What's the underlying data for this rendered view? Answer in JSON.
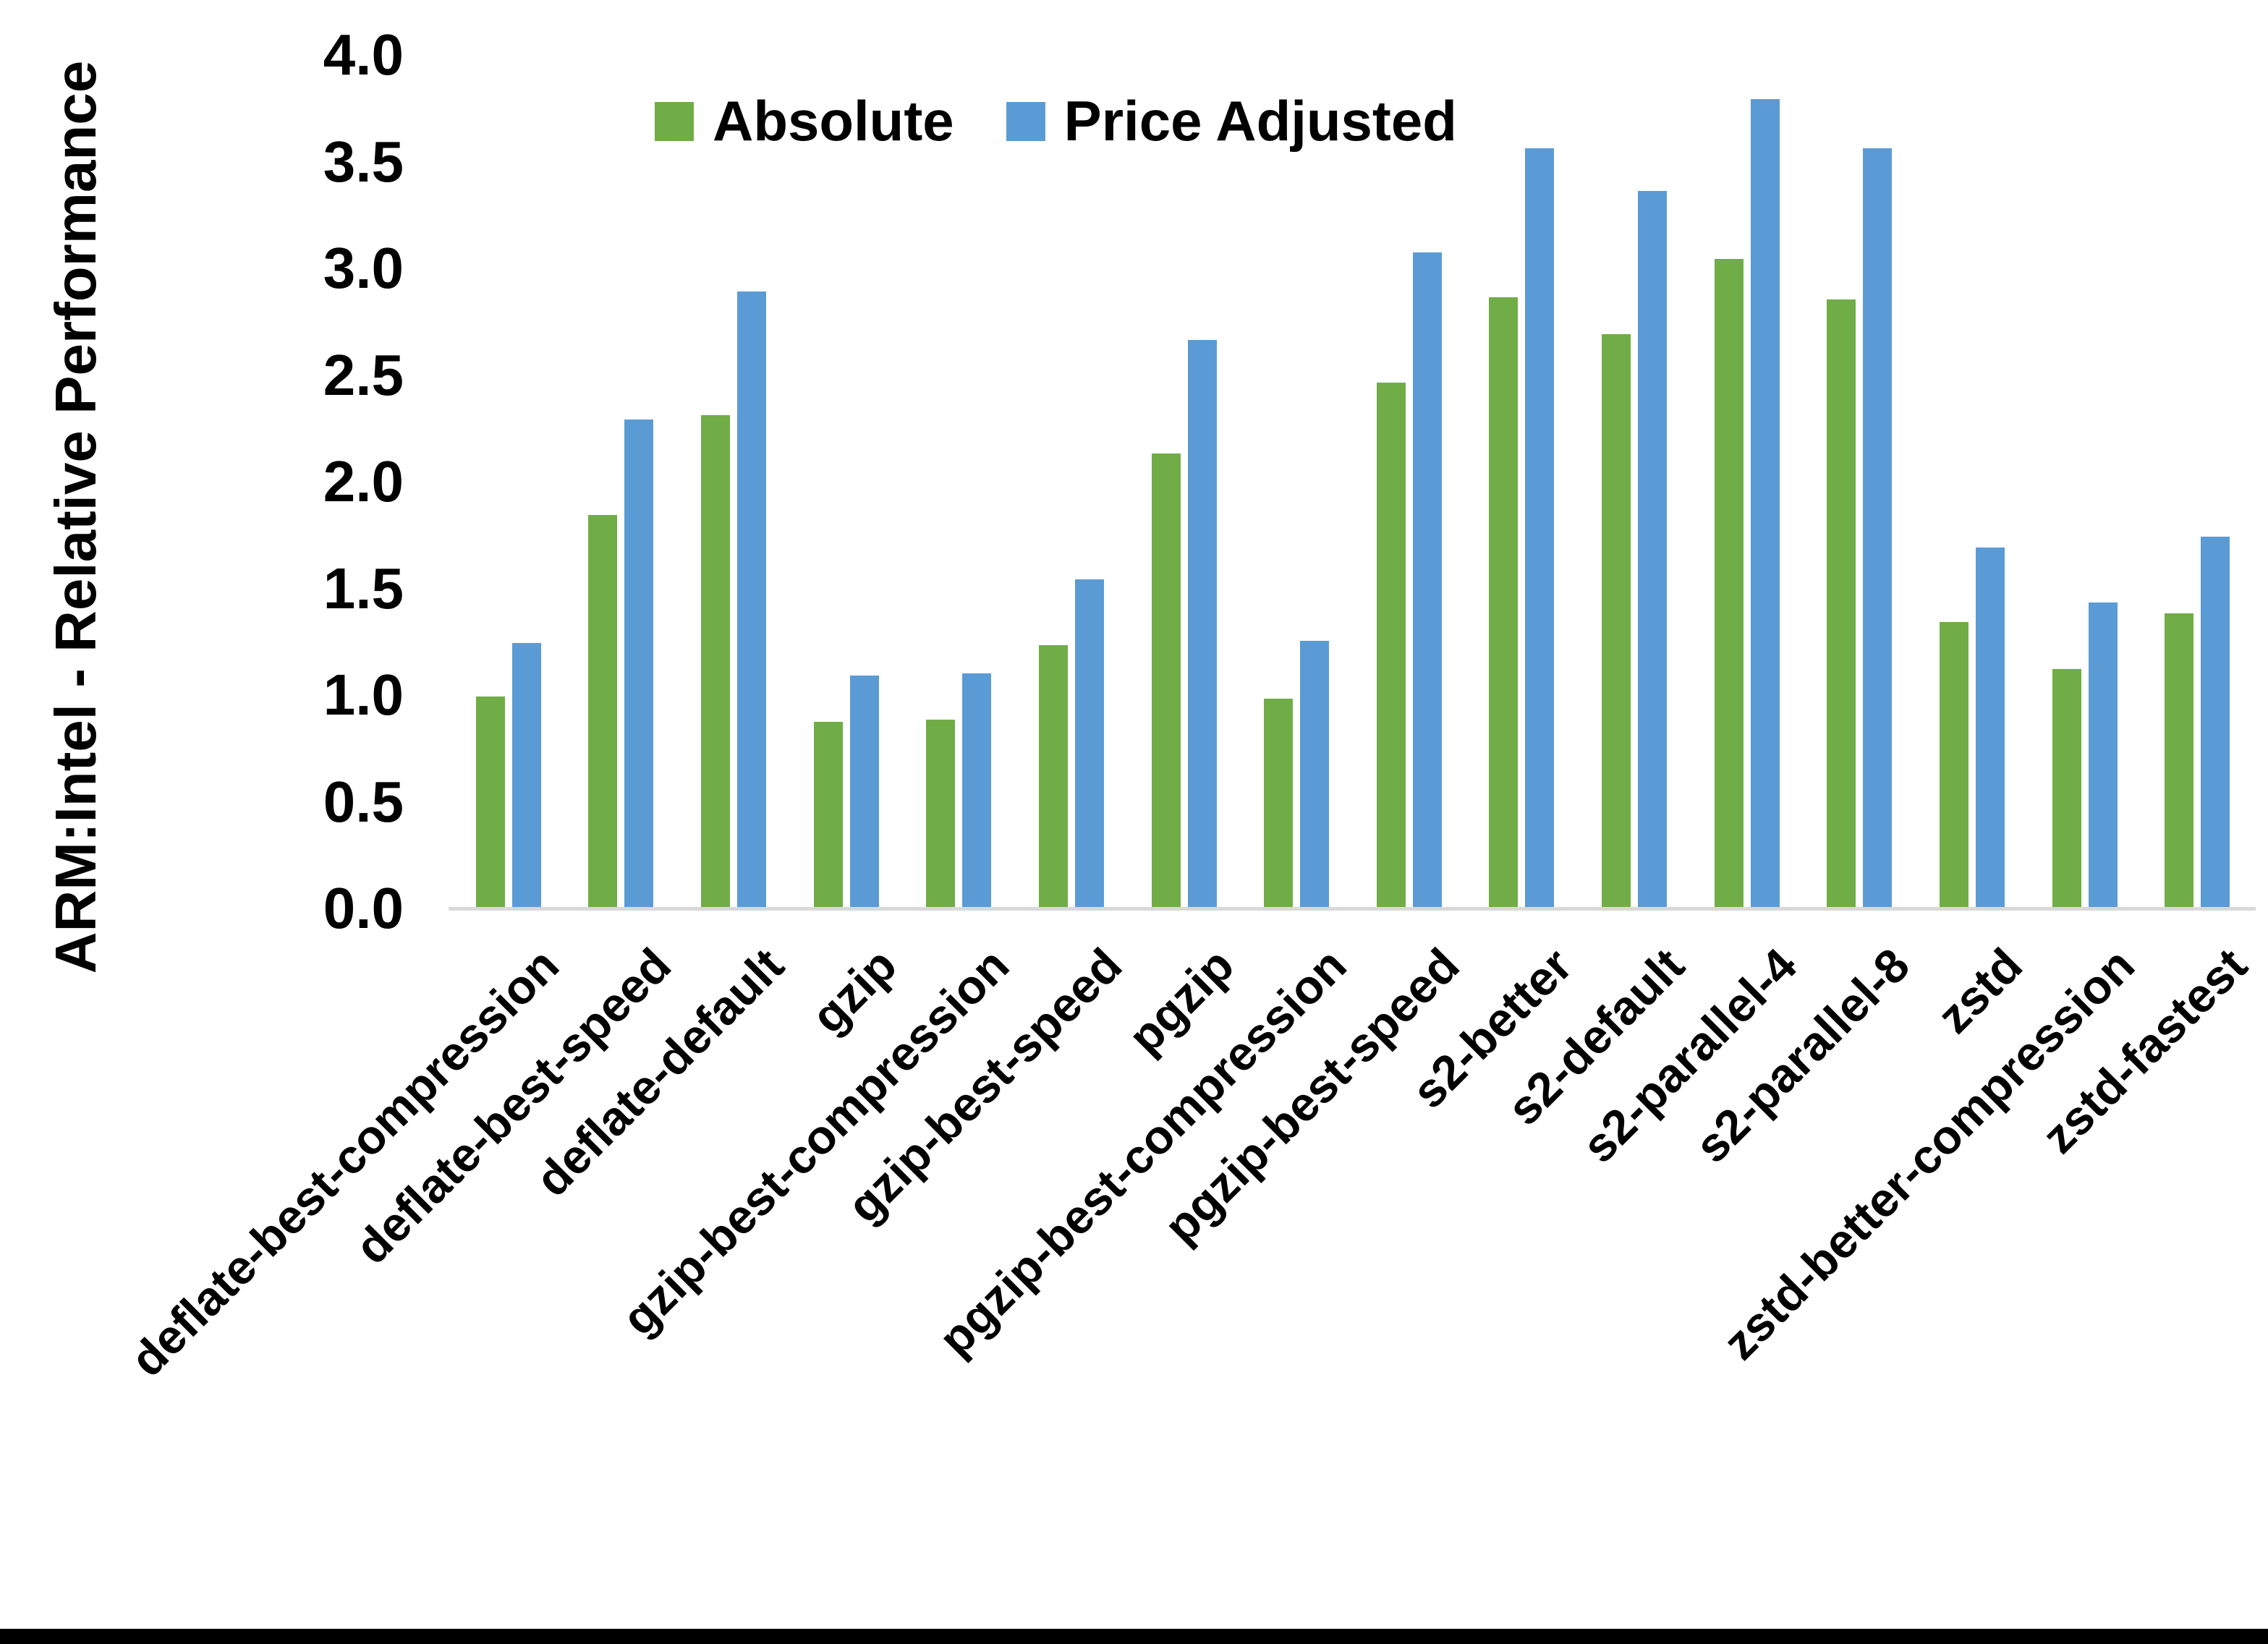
{
  "page": {
    "background_color": "#FFFFFF",
    "bottom_border_color": "#000000"
  },
  "chart_data": {
    "type": "bar",
    "title": "",
    "xlabel": "",
    "ylabel": "ARM:Intel - Relative Performance",
    "ylim": [
      0.0,
      4.0
    ],
    "grid": false,
    "legend_position": "top",
    "axis_line_color": "#D9D9D9",
    "yticks": [
      {
        "label": "0.0",
        "value": 0.0
      },
      {
        "label": "0.5",
        "value": 0.5
      },
      {
        "label": "1.0",
        "value": 1.0
      },
      {
        "label": "1.5",
        "value": 1.5
      },
      {
        "label": "2.0",
        "value": 2.0
      },
      {
        "label": "2.5",
        "value": 2.5
      },
      {
        "label": "3.0",
        "value": 3.0
      },
      {
        "label": "3.5",
        "value": 3.5
      },
      {
        "label": "4.0",
        "value": 4.0
      }
    ],
    "categories": [
      "deflate-best-compression",
      "deflate-best-speed",
      "deflate-default",
      "gzip",
      "gzip-best-compression",
      "gzip-best-speed",
      "pgzip",
      "pgzip-best-compression",
      "pgzip-best-speed",
      "s2-better",
      "s2-default",
      "s2-parallel-4",
      "s2-parallel-8",
      "zstd",
      "zstd-better-compression",
      "zstd-fastest"
    ],
    "series": [
      {
        "name": "Absolute",
        "color": "#70AD47",
        "values": [
          1.0,
          1.85,
          2.32,
          0.88,
          0.89,
          1.24,
          2.14,
          0.99,
          2.47,
          2.87,
          2.7,
          3.05,
          2.86,
          1.35,
          1.13,
          1.39
        ]
      },
      {
        "name": "Price Adjusted",
        "color": "#5B9BD5",
        "values": [
          1.25,
          2.3,
          2.9,
          1.1,
          1.11,
          1.55,
          2.67,
          1.26,
          3.08,
          3.57,
          3.37,
          3.8,
          3.57,
          1.7,
          1.44,
          1.75
        ]
      }
    ]
  }
}
